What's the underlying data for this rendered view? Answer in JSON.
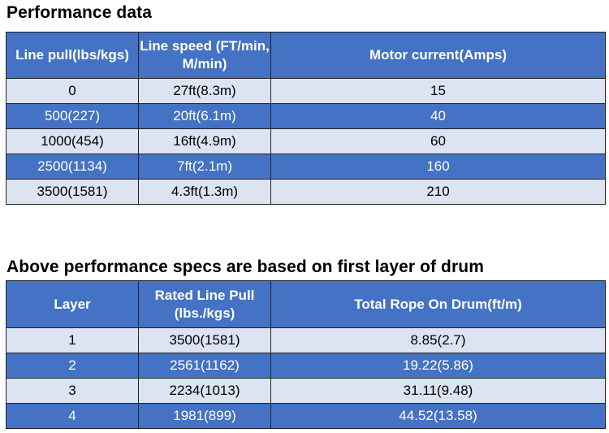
{
  "performance": {
    "title": "Performance data",
    "headers": [
      "Line pull(lbs/kgs)",
      "Line speed (FT/min, M/min)",
      "Motor current(Amps)"
    ],
    "rows": [
      [
        "0",
        "27ft(8.3m)",
        "15"
      ],
      [
        "500(227)",
        "20ft(6.1m)",
        "40"
      ],
      [
        "1000(454)",
        "16ft(4.9m)",
        "60"
      ],
      [
        "2500(1134)",
        "7ft(2.1m)",
        "160"
      ],
      [
        "3500(1581)",
        "4.3ft(1.3m)",
        "210"
      ]
    ]
  },
  "layers": {
    "title": "Above performance specs are based on first layer of drum",
    "headers": [
      "Layer",
      "Rated Line Pull (lbs./kgs)",
      "Total Rope On Drum(ft/m)"
    ],
    "rows": [
      [
        "1",
        "3500(1581)",
        "8.85(2.7)"
      ],
      [
        "2",
        "2561(1162)",
        "19.22(5.86)"
      ],
      [
        "3",
        "2234(1013)",
        "31.11(9.48)"
      ],
      [
        "4",
        "1981(899)",
        "44.52(13.58)"
      ]
    ]
  }
}
